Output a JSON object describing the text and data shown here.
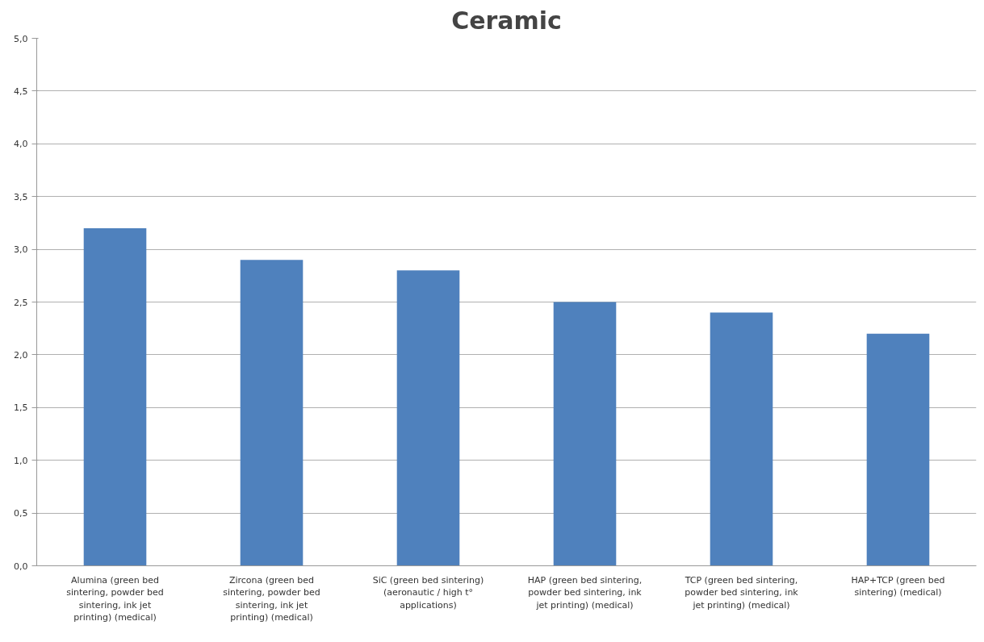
{
  "chart_data": {
    "type": "bar",
    "title": "Ceramic",
    "categories": [
      "Alumina (green bed sintering, powder bed sintering, ink jet printing) (medical)",
      "Zircona (green bed sintering, powder bed sintering, ink jet printing) (medical)",
      "SiC (green bed sintering) (aeronautic / high t° applications)",
      "HAP (green bed sintering, powder bed sintering, ink jet printing) (medical)",
      "TCP (green bed sintering, powder bed sintering, ink jet printing) (medical)",
      "HAP+TCP (green bed sintering) (medical)"
    ],
    "values": [
      3.2,
      2.9,
      2.8,
      2.5,
      2.4,
      2.2
    ],
    "color": "#4f81bd",
    "ylim": [
      0,
      5
    ],
    "yticks": [
      {
        "value": 0,
        "label": "0,0"
      },
      {
        "value": 0.5,
        "label": "0,5"
      },
      {
        "value": 1,
        "label": "1,0"
      },
      {
        "value": 1.5,
        "label": "1,5"
      },
      {
        "value": 2,
        "label": "2,0"
      },
      {
        "value": 2.5,
        "label": "2,5"
      },
      {
        "value": 3,
        "label": "3,0"
      },
      {
        "value": 3.5,
        "label": "3,5"
      },
      {
        "value": 4,
        "label": "4,0"
      },
      {
        "value": 4.5,
        "label": "4,5"
      },
      {
        "value": 5,
        "label": "5,0"
      }
    ],
    "grid": "y"
  }
}
